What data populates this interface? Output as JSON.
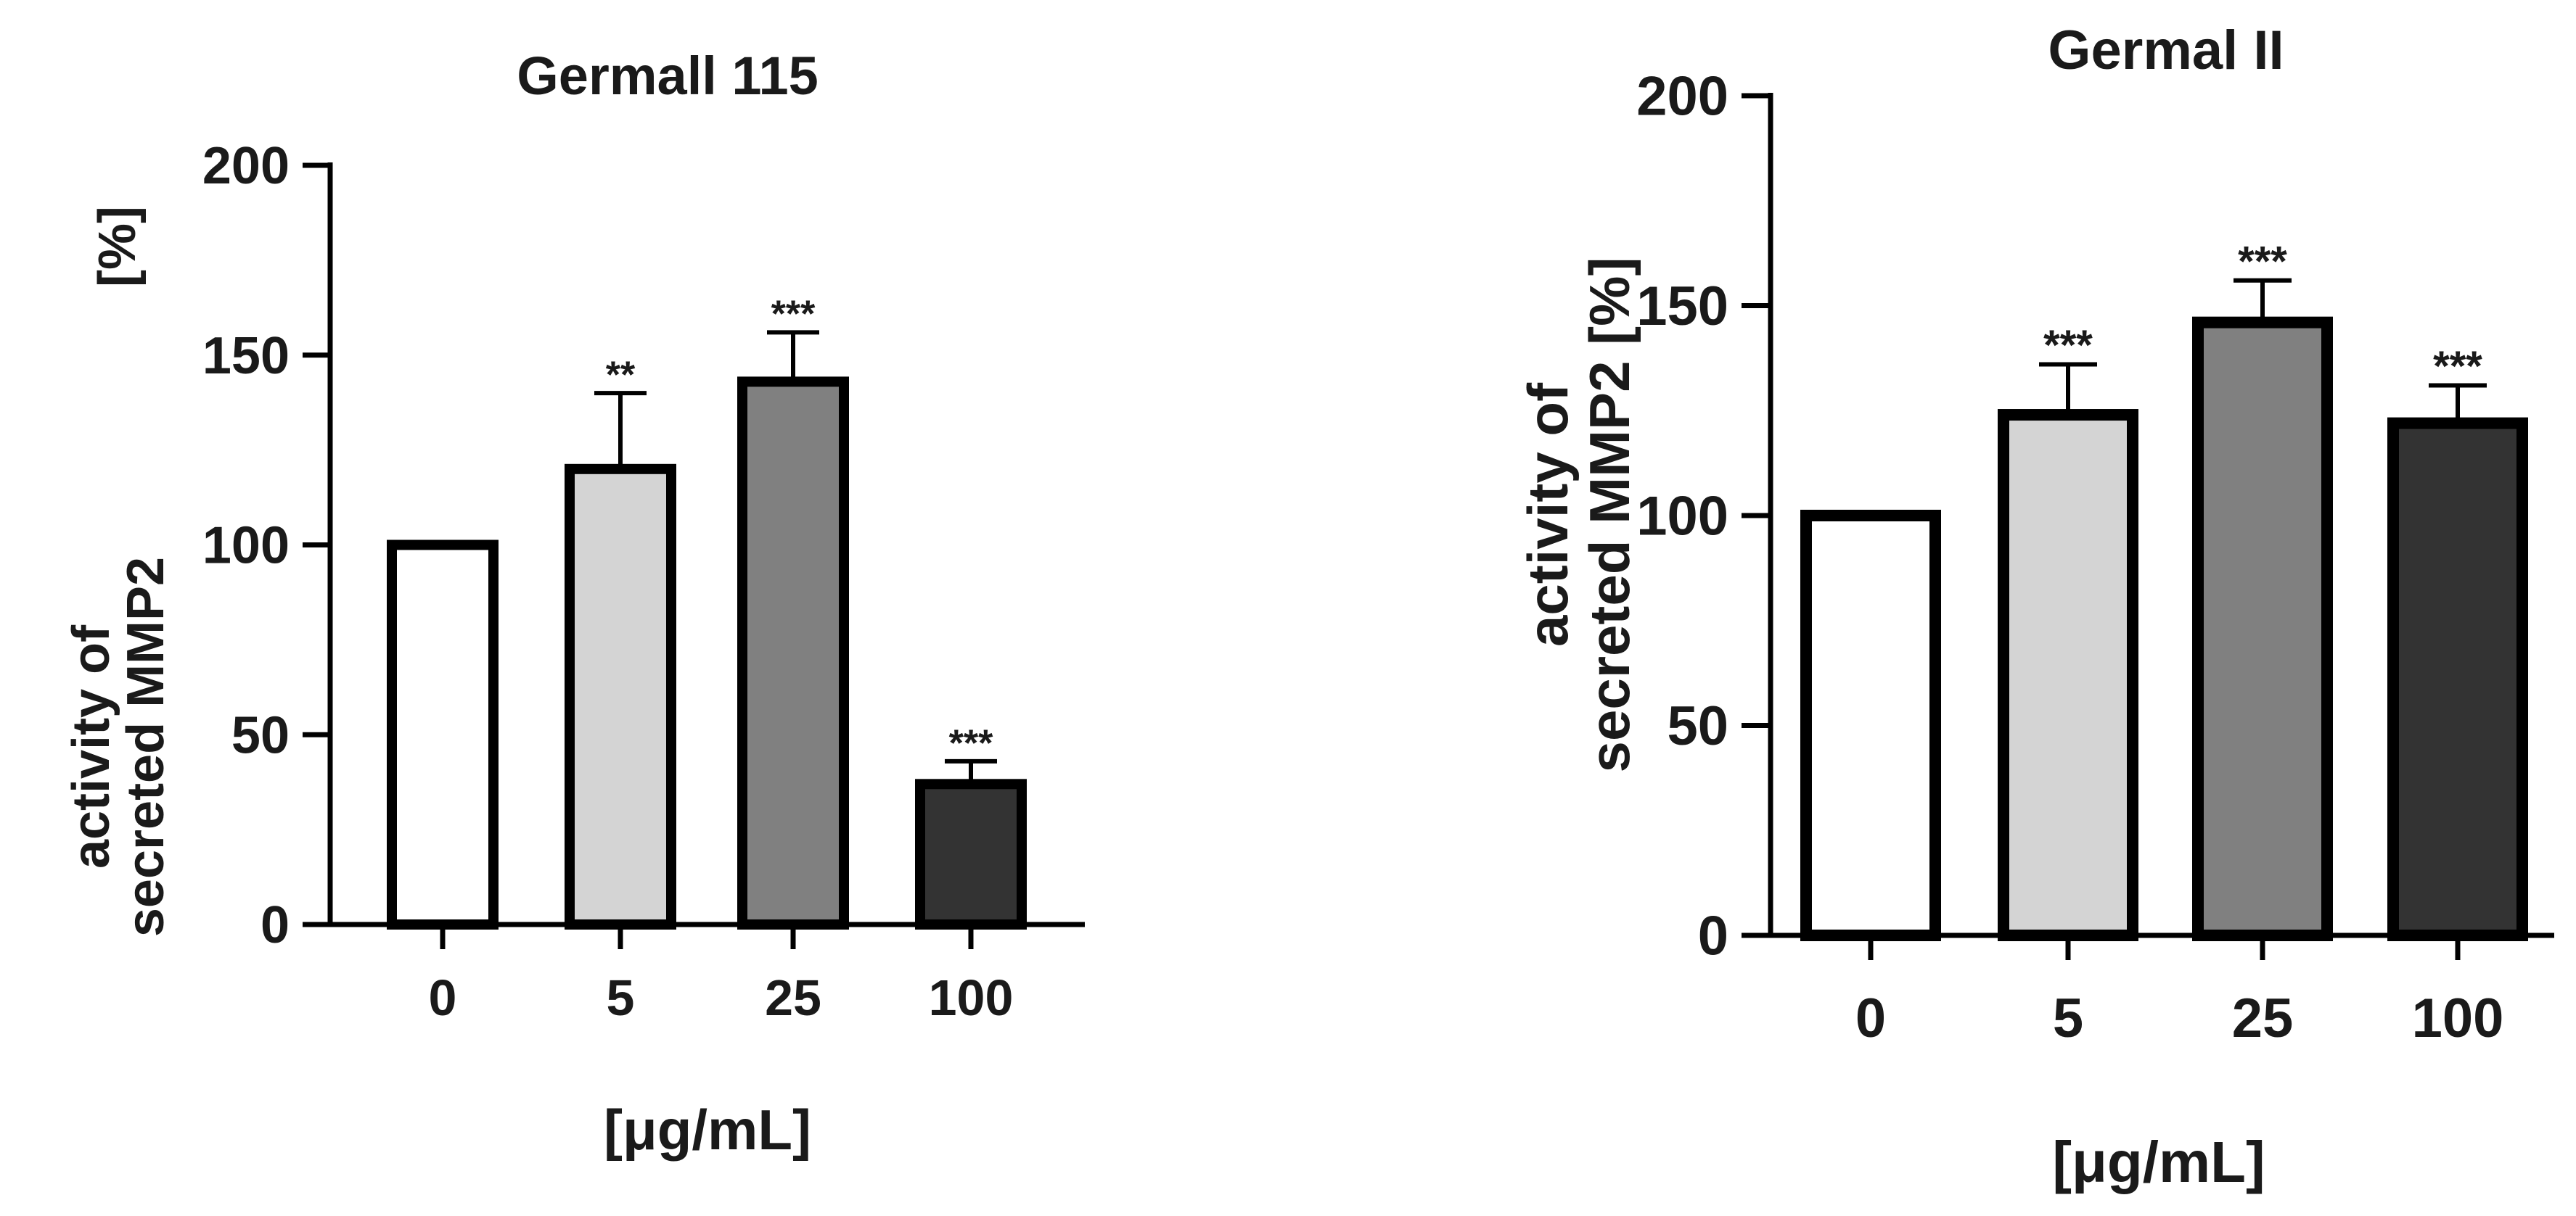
{
  "chart_data": [
    {
      "type": "bar",
      "title": "Germall 115",
      "xlabel": "[μg/mL]",
      "ylabel_lines": [
        "activity of",
        "secreted MMP2"
      ],
      "ylabel_unit": "[%]",
      "categories": [
        "0",
        "5",
        "25",
        "100"
      ],
      "values": [
        100,
        120,
        143,
        37
      ],
      "errors": [
        0,
        20,
        13,
        6
      ],
      "significance": [
        "",
        "**",
        "***",
        "***"
      ],
      "bar_colors": [
        "#ffffff",
        "#d4d4d4",
        "#808080",
        "#333333"
      ],
      "ylim": [
        0,
        200
      ],
      "yticks": [
        0,
        50,
        100,
        150,
        200
      ],
      "grid": false
    },
    {
      "type": "bar",
      "title": "Germal II",
      "xlabel": "[μg/mL]",
      "ylabel_lines": [
        "activity of",
        "secreted MMP2 [%]"
      ],
      "ylabel_unit": "",
      "categories": [
        "0",
        "5",
        "25",
        "100"
      ],
      "values": [
        100,
        124,
        146,
        122
      ],
      "errors": [
        0,
        12,
        10,
        9
      ],
      "significance": [
        "",
        "***",
        "***",
        "***"
      ],
      "bar_colors": [
        "#ffffff",
        "#d4d4d4",
        "#808080",
        "#333333"
      ],
      "ylim": [
        0,
        200
      ],
      "yticks": [
        0,
        50,
        100,
        150,
        200
      ],
      "grid": false
    }
  ]
}
